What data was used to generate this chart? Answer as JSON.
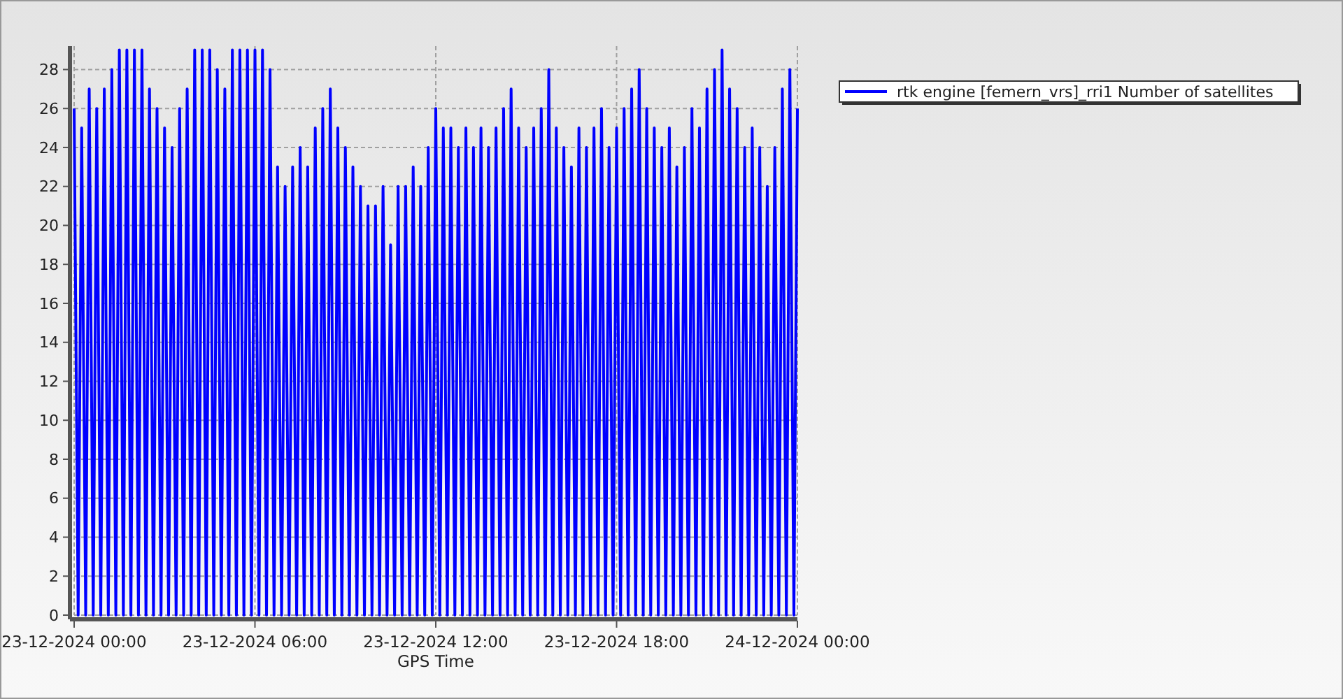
{
  "chart_data": {
    "type": "line",
    "xlabel": "GPS Time",
    "xlim": [
      "2024-12-23T00:00",
      "2024-12-24T00:00"
    ],
    "xticks": [
      {
        "value": "2024-12-23T00:00",
        "label": "23-12-2024 00:00"
      },
      {
        "value": "2024-12-23T06:00",
        "label": "23-12-2024 06:00"
      },
      {
        "value": "2024-12-23T12:00",
        "label": "23-12-2024 12:00"
      },
      {
        "value": "2024-12-23T18:00",
        "label": "23-12-2024 18:00"
      },
      {
        "value": "2024-12-24T00:00",
        "label": "24-12-2024 00:00"
      }
    ],
    "ylim": [
      0,
      29.2
    ],
    "yticks": [
      0,
      2,
      4,
      6,
      8,
      10,
      12,
      14,
      16,
      18,
      20,
      22,
      24,
      26,
      28
    ],
    "grid": true,
    "legend": "top right",
    "marker": "none",
    "line_style": "solid",
    "x": [
      "2024-12-23T00:00",
      "2024-12-23T00:08",
      "2024-12-23T00:15",
      "2024-12-23T00:23",
      "2024-12-23T00:30",
      "2024-12-23T00:38",
      "2024-12-23T00:45",
      "2024-12-23T00:53",
      "2024-12-23T01:00",
      "2024-12-23T01:08",
      "2024-12-23T01:15",
      "2024-12-23T01:23",
      "2024-12-23T01:30",
      "2024-12-23T01:38",
      "2024-12-23T01:45",
      "2024-12-23T01:53",
      "2024-12-23T02:00",
      "2024-12-23T02:08",
      "2024-12-23T02:15",
      "2024-12-23T02:23",
      "2024-12-23T02:30",
      "2024-12-23T02:38",
      "2024-12-23T02:45",
      "2024-12-23T02:53",
      "2024-12-23T03:00",
      "2024-12-23T03:08",
      "2024-12-23T03:15",
      "2024-12-23T03:23",
      "2024-12-23T03:30",
      "2024-12-23T03:38",
      "2024-12-23T03:45",
      "2024-12-23T03:53",
      "2024-12-23T04:00",
      "2024-12-23T04:08",
      "2024-12-23T04:15",
      "2024-12-23T04:23",
      "2024-12-23T04:30",
      "2024-12-23T04:38",
      "2024-12-23T04:45",
      "2024-12-23T04:53",
      "2024-12-23T05:00",
      "2024-12-23T05:08",
      "2024-12-23T05:15",
      "2024-12-23T05:23",
      "2024-12-23T05:30",
      "2024-12-23T05:38",
      "2024-12-23T05:45",
      "2024-12-23T05:53",
      "2024-12-23T06:00",
      "2024-12-23T06:08",
      "2024-12-23T06:15",
      "2024-12-23T06:23",
      "2024-12-23T06:30",
      "2024-12-23T06:38",
      "2024-12-23T06:45",
      "2024-12-23T06:53",
      "2024-12-23T07:00",
      "2024-12-23T07:08",
      "2024-12-23T07:15",
      "2024-12-23T07:23",
      "2024-12-23T07:30",
      "2024-12-23T07:38",
      "2024-12-23T07:45",
      "2024-12-23T07:53",
      "2024-12-23T08:00",
      "2024-12-23T08:08",
      "2024-12-23T08:15",
      "2024-12-23T08:23",
      "2024-12-23T08:30",
      "2024-12-23T08:38",
      "2024-12-23T08:45",
      "2024-12-23T08:53",
      "2024-12-23T09:00",
      "2024-12-23T09:08",
      "2024-12-23T09:15",
      "2024-12-23T09:23",
      "2024-12-23T09:30",
      "2024-12-23T09:38",
      "2024-12-23T09:45",
      "2024-12-23T09:53",
      "2024-12-23T10:00",
      "2024-12-23T10:08",
      "2024-12-23T10:15",
      "2024-12-23T10:23",
      "2024-12-23T10:30",
      "2024-12-23T10:38",
      "2024-12-23T10:45",
      "2024-12-23T10:53",
      "2024-12-23T11:00",
      "2024-12-23T11:08",
      "2024-12-23T11:15",
      "2024-12-23T11:23",
      "2024-12-23T11:30",
      "2024-12-23T11:38",
      "2024-12-23T11:45",
      "2024-12-23T11:53",
      "2024-12-23T12:00",
      "2024-12-23T12:08",
      "2024-12-23T12:15",
      "2024-12-23T12:23",
      "2024-12-23T12:30",
      "2024-12-23T12:38",
      "2024-12-23T12:45",
      "2024-12-23T12:53",
      "2024-12-23T13:00",
      "2024-12-23T13:08",
      "2024-12-23T13:15",
      "2024-12-23T13:23",
      "2024-12-23T13:30",
      "2024-12-23T13:38",
      "2024-12-23T13:45",
      "2024-12-23T13:53",
      "2024-12-23T14:00",
      "2024-12-23T14:08",
      "2024-12-23T14:15",
      "2024-12-23T14:23",
      "2024-12-23T14:30",
      "2024-12-23T14:38",
      "2024-12-23T14:45",
      "2024-12-23T14:53",
      "2024-12-23T15:00",
      "2024-12-23T15:08",
      "2024-12-23T15:15",
      "2024-12-23T15:23",
      "2024-12-23T15:30",
      "2024-12-23T15:38",
      "2024-12-23T15:45",
      "2024-12-23T15:53",
      "2024-12-23T16:00",
      "2024-12-23T16:08",
      "2024-12-23T16:15",
      "2024-12-23T16:23",
      "2024-12-23T16:30",
      "2024-12-23T16:38",
      "2024-12-23T16:45",
      "2024-12-23T16:53",
      "2024-12-23T17:00",
      "2024-12-23T17:08",
      "2024-12-23T17:15",
      "2024-12-23T17:23",
      "2024-12-23T17:30",
      "2024-12-23T17:38",
      "2024-12-23T17:45",
      "2024-12-23T17:53",
      "2024-12-23T18:00",
      "2024-12-23T18:08",
      "2024-12-23T18:15",
      "2024-12-23T18:23",
      "2024-12-23T18:30",
      "2024-12-23T18:38",
      "2024-12-23T18:45",
      "2024-12-23T18:53",
      "2024-12-23T19:00",
      "2024-12-23T19:08",
      "2024-12-23T19:15",
      "2024-12-23T19:23",
      "2024-12-23T19:30",
      "2024-12-23T19:38",
      "2024-12-23T19:45",
      "2024-12-23T19:53",
      "2024-12-23T20:00",
      "2024-12-23T20:08",
      "2024-12-23T20:15",
      "2024-12-23T20:23",
      "2024-12-23T20:30",
      "2024-12-23T20:38",
      "2024-12-23T20:45",
      "2024-12-23T20:53",
      "2024-12-23T21:00",
      "2024-12-23T21:08",
      "2024-12-23T21:15",
      "2024-12-23T21:23",
      "2024-12-23T21:30",
      "2024-12-23T21:38",
      "2024-12-23T21:45",
      "2024-12-23T21:53",
      "2024-12-23T22:00",
      "2024-12-23T22:08",
      "2024-12-23T22:15",
      "2024-12-23T22:23",
      "2024-12-23T22:30",
      "2024-12-23T22:38",
      "2024-12-23T22:45",
      "2024-12-23T22:53",
      "2024-12-23T23:00",
      "2024-12-23T23:08",
      "2024-12-23T23:15",
      "2024-12-23T23:23",
      "2024-12-23T23:30",
      "2024-12-23T23:38",
      "2024-12-23T23:45",
      "2024-12-23T23:53",
      "2024-12-24T00:00"
    ],
    "series": [
      {
        "name": "rtk engine [femern_vrs]_rri1 Number of satellites",
        "color": "#0000ff",
        "values": [
          26,
          0,
          25,
          0,
          27,
          0,
          26,
          0,
          27,
          0,
          28,
          0,
          29,
          0,
          29,
          0,
          29,
          0,
          29,
          0,
          27,
          0,
          26,
          0,
          25,
          0,
          24,
          0,
          26,
          0,
          27,
          0,
          29,
          0,
          29,
          0,
          29,
          0,
          28,
          0,
          27,
          0,
          29,
          0,
          29,
          0,
          29,
          0,
          29,
          0,
          29,
          0,
          28,
          0,
          23,
          0,
          22,
          0,
          23,
          0,
          24,
          0,
          23,
          0,
          25,
          0,
          26,
          0,
          27,
          0,
          25,
          0,
          24,
          0,
          23,
          0,
          22,
          0,
          21,
          0,
          21,
          0,
          22,
          0,
          19,
          0,
          22,
          0,
          22,
          0,
          23,
          0,
          22,
          0,
          24,
          0,
          26,
          0,
          25,
          0,
          25,
          0,
          24,
          0,
          25,
          0,
          24,
          0,
          25,
          0,
          24,
          0,
          25,
          0,
          26,
          0,
          27,
          0,
          25,
          0,
          24,
          0,
          25,
          0,
          26,
          0,
          28,
          0,
          25,
          0,
          24,
          0,
          23,
          0,
          25,
          0,
          24,
          0,
          25,
          0,
          26,
          0,
          24,
          0,
          25,
          0,
          26,
          0,
          27,
          0,
          28,
          0,
          26,
          0,
          25,
          0,
          24,
          0,
          25,
          0,
          23,
          0,
          24,
          0,
          26,
          0,
          25,
          0,
          27,
          0,
          28,
          0,
          29,
          0,
          27,
          0,
          26,
          0,
          24,
          0,
          25,
          0,
          24,
          0,
          22,
          0,
          24,
          0,
          27,
          0,
          28,
          0,
          26
        ]
      }
    ]
  }
}
